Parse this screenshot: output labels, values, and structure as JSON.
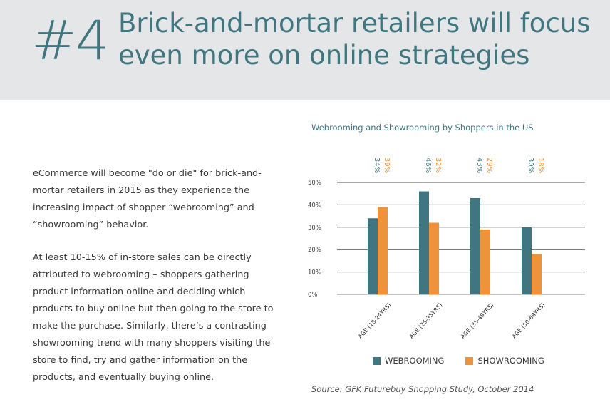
{
  "header": {
    "number": "#4",
    "headline_line1": "Brick-and-mortar retailers will focus",
    "headline_line2": "even more on online strategies"
  },
  "body": {
    "paragraph1": "eCommerce will become \"do or die\" for brick-and-mortar retailers in 2015 as they experience the increasing impact of shopper “webrooming” and “showrooming” behavior.",
    "paragraph2": "At least 10-15% of in-store sales can be directly attributed to webrooming – shoppers gathering product information online and deciding which products to buy online but then going to the store to make the purchase. Similarly, there’s a contrasting showrooming trend with many shoppers visiting the store to find, try and gather information on the products, and eventually buying online."
  },
  "source": "Source: GFK Futurebuy Shopping Study, October 2014",
  "chart_data": {
    "type": "bar",
    "title": "Webrooming and Showrooming by Shoppers in the US",
    "categories": [
      "AGE (18-24YRS)",
      "AGE (25-35YRS)",
      "AGE (35-49YRS)",
      "AGE (50-68YRS)"
    ],
    "series": [
      {
        "name": "WEBROOMING",
        "values": [
          34,
          46,
          43,
          30
        ],
        "labels": [
          "34%",
          "46%",
          "43%",
          "30%"
        ],
        "color": "#3f7680"
      },
      {
        "name": "SHOWROOMING",
        "values": [
          39,
          32,
          29,
          18
        ],
        "labels": [
          "39%",
          "32%",
          "29%",
          "18%"
        ],
        "color": "#f0923a"
      }
    ],
    "ylim": [
      0,
      50
    ],
    "yticks": [
      0,
      10,
      20,
      30,
      40,
      50
    ],
    "ytick_labels": [
      "0%",
      "10%",
      "20%",
      "30%",
      "40%",
      "50%"
    ],
    "grid": true,
    "legend": "bottom"
  }
}
